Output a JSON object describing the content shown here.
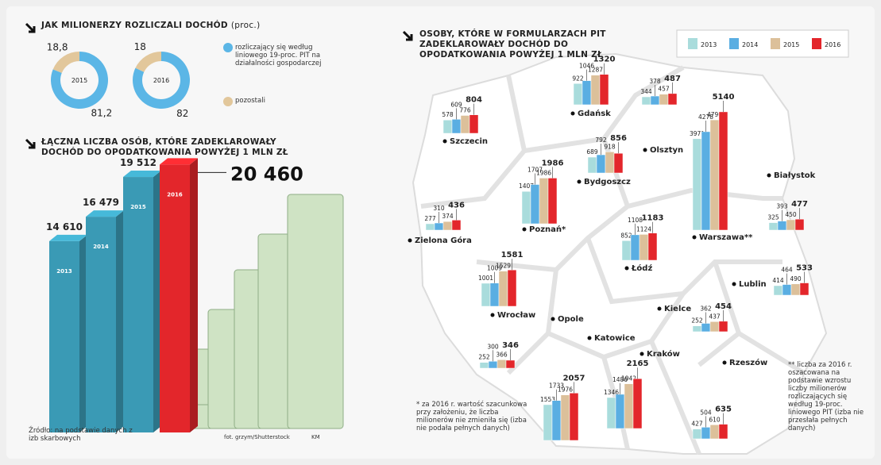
{
  "chart_data": [
    {
      "type": "pie",
      "title": "JAK MILIONERZY ROZLICZALI DOCHÓD",
      "subtitle": "(proc.)",
      "center_label": "2015",
      "categories": [
        "rozliczający się według liniowego 19-proc. PIT na działalności gospodarczej",
        "pozostali"
      ],
      "values": [
        81.2,
        18.8
      ],
      "value_labels": [
        "81,2",
        "18,8"
      ],
      "colors": [
        "#5bb6e6",
        "#e2c79b"
      ]
    },
    {
      "type": "pie",
      "center_label": "2016",
      "values": [
        82,
        18
      ],
      "colors": [
        "#5bb6e6",
        "#e2c79b"
      ]
    },
    {
      "type": "bar3d",
      "title": "ŁĄCZNA LICZBA OSÓB, KTÓRE ZADEKLAROWAŁY DOCHÓD DO OPODATKOWANIA POWYŻEJ 1 MLN ZŁ",
      "categories": [
        "2013",
        "2014",
        "2015",
        "2016"
      ],
      "values": [
        14610,
        16479,
        19512,
        20460
      ],
      "value_labels": [
        "14 610",
        "16 479",
        "19 512",
        "20 460"
      ],
      "colors": [
        "#3a9ab5",
        "#3a9ab5",
        "#3a9ab5",
        "#e3262b"
      ],
      "source": "Źródło: na podstawie danych z izb skarbowych",
      "photo_credit": "fot. grzym/Shutterstock",
      "author": "KM"
    },
    {
      "type": "map_bar",
      "title": "OSOBY, KTÓRE W FORMULARZACH PIT ZADEKLAROWAŁY DOCHÓD DO OPODATKOWANIA POWYŻEJ 1 MLN ZŁ",
      "categories": [
        "Gdańsk",
        "Olsztyn",
        "Szczecin",
        "Bydgoszcz",
        "Warszawa**",
        "Poznań*",
        "Białystok",
        "Zielona Góra",
        "Łódź",
        "Wrocław",
        "Lublin",
        "Kielce",
        "Opole",
        "Katowice",
        "Kraków",
        "Rzeszów"
      ],
      "series": [
        {
          "name": "2013",
          "color": "#a9dcdc",
          "values": [
            922,
            344,
            578,
            689,
            3971,
            1407,
            325,
            277,
            852,
            1001,
            414,
            252,
            252,
            1553,
            1346,
            427
          ]
        },
        {
          "name": "2014",
          "color": "#5aaee2",
          "values": [
            1046,
            378,
            609,
            792,
            4278,
            1707,
            393,
            310,
            1108,
            1009,
            464,
            362,
            300,
            1733,
            1486,
            504
          ]
        },
        {
          "name": "2015",
          "color": "#dcc09a",
          "values": [
            1287,
            457,
            776,
            918,
            4790,
            1986,
            450,
            374,
            1124,
            1529,
            490,
            437,
            366,
            1976,
            1942,
            610
          ]
        },
        {
          "name": "2016",
          "color": "#e3262b",
          "values": [
            1320,
            487,
            804,
            856,
            5140,
            1986,
            477,
            436,
            1183,
            1581,
            533,
            454,
            346,
            2057,
            2165,
            635
          ]
        }
      ],
      "footnotes": [
        "* za 2016 r. wartość szacunkowa przy założeniu, że liczba milionerów nie zmieniła się (izba nie podała pełnych danych)",
        "** liczba za 2016 r. oszacowana na podstawie wzrostu liczby milionerów rozliczających się według 19-proc. liniowego PIT (izba nie przesłała pełnych danych)"
      ]
    }
  ]
}
